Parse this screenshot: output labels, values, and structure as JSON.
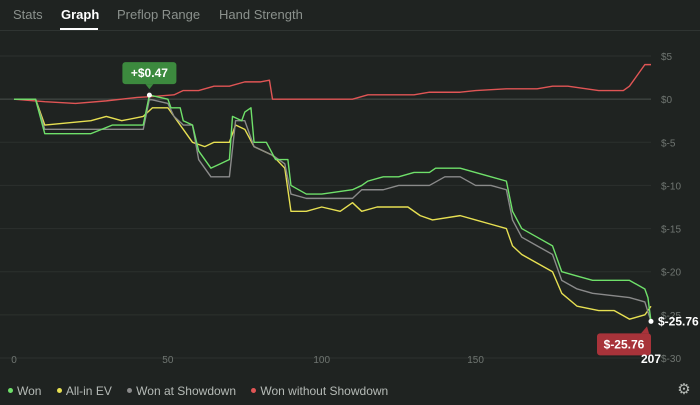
{
  "tabs": [
    {
      "label": "Stats"
    },
    {
      "label": "Graph"
    },
    {
      "label": "Preflop Range"
    },
    {
      "label": "Hand Strength"
    }
  ],
  "active_tab": "Graph",
  "colors": {
    "won": "#6fe06a",
    "allin_ev": "#e7e052",
    "showdown": "#8a8a8a",
    "no_showdown": "#e05555",
    "peak_badge": "#3c8a3e",
    "final_badge": "#a8333a"
  },
  "peak_badge": "+$0.47",
  "final_badge": "$-25.76",
  "final_value_label": "$-25.76",
  "x_end_label": "207",
  "legend": [
    {
      "label": "Won"
    },
    {
      "label": "All-in EV"
    },
    {
      "label": "Won at Showdown"
    },
    {
      "label": "Won without Showdown"
    }
  ],
  "settings_icon": "gear-icon",
  "chart_data": {
    "type": "line",
    "xlim": [
      0,
      207
    ],
    "ylim": [
      -30,
      5
    ],
    "x_ticks": [
      0,
      50,
      100,
      150
    ],
    "y_ticks": [
      5,
      0,
      -5,
      -10,
      -15,
      -20,
      -25,
      -30
    ],
    "y_tick_labels": [
      "$5",
      "$0",
      "$-5",
      "$-10",
      "$-15",
      "$-20",
      "$-25",
      "$-30"
    ],
    "x_tick_labels": [
      "0",
      "50",
      "100",
      "150"
    ],
    "series": [
      {
        "name": "Won",
        "color": "#6fe06a",
        "points": [
          [
            0,
            0
          ],
          [
            7,
            0
          ],
          [
            10,
            -4
          ],
          [
            25,
            -4
          ],
          [
            32,
            -3
          ],
          [
            42,
            -3
          ],
          [
            44,
            0.47
          ],
          [
            50,
            0
          ],
          [
            51,
            -1
          ],
          [
            54,
            -1
          ],
          [
            55,
            -2.5
          ],
          [
            58,
            -3
          ],
          [
            60,
            -6
          ],
          [
            64,
            -8
          ],
          [
            67,
            -7.5
          ],
          [
            70,
            -7
          ],
          [
            71,
            -2
          ],
          [
            74,
            -2.5
          ],
          [
            75,
            -1.5
          ],
          [
            77,
            -1
          ],
          [
            78,
            -5
          ],
          [
            82,
            -5
          ],
          [
            85,
            -7
          ],
          [
            89,
            -7
          ],
          [
            90,
            -10
          ],
          [
            95,
            -11
          ],
          [
            100,
            -11
          ],
          [
            110,
            -10.5
          ],
          [
            113,
            -10
          ],
          [
            115,
            -9.5
          ],
          [
            120,
            -9
          ],
          [
            125,
            -9
          ],
          [
            130,
            -8.5
          ],
          [
            135,
            -8.5
          ],
          [
            137,
            -8
          ],
          [
            145,
            -8
          ],
          [
            155,
            -9
          ],
          [
            160,
            -9.5
          ],
          [
            162,
            -13
          ],
          [
            165,
            -15
          ],
          [
            170,
            -16
          ],
          [
            175,
            -17
          ],
          [
            178,
            -20
          ],
          [
            183,
            -20.5
          ],
          [
            188,
            -21
          ],
          [
            200,
            -21
          ],
          [
            205,
            -22
          ],
          [
            206,
            -23
          ],
          [
            207,
            -25.76
          ]
        ]
      },
      {
        "name": "All-in EV",
        "color": "#e7e052",
        "points": [
          [
            0,
            0
          ],
          [
            7,
            0
          ],
          [
            10,
            -3
          ],
          [
            25,
            -2.5
          ],
          [
            30,
            -2
          ],
          [
            35,
            -2.5
          ],
          [
            42,
            -2
          ],
          [
            45,
            -1
          ],
          [
            50,
            -1
          ],
          [
            52,
            -2
          ],
          [
            55,
            -3.5
          ],
          [
            58,
            -5
          ],
          [
            62,
            -5.5
          ],
          [
            65,
            -5
          ],
          [
            70,
            -5
          ],
          [
            72,
            -3
          ],
          [
            75,
            -3.5
          ],
          [
            78,
            -5.5
          ],
          [
            84,
            -6.5
          ],
          [
            88,
            -8
          ],
          [
            90,
            -13
          ],
          [
            95,
            -13
          ],
          [
            100,
            -12.5
          ],
          [
            106,
            -13
          ],
          [
            110,
            -12
          ],
          [
            113,
            -13
          ],
          [
            118,
            -12.5
          ],
          [
            122,
            -12.5
          ],
          [
            128,
            -12.5
          ],
          [
            132,
            -13.5
          ],
          [
            136,
            -14
          ],
          [
            145,
            -13.5
          ],
          [
            150,
            -14
          ],
          [
            155,
            -14.5
          ],
          [
            160,
            -15
          ],
          [
            162,
            -17
          ],
          [
            165,
            -18
          ],
          [
            170,
            -19
          ],
          [
            175,
            -20
          ],
          [
            178,
            -22.5
          ],
          [
            183,
            -24
          ],
          [
            190,
            -24.5
          ],
          [
            195,
            -24.5
          ],
          [
            200,
            -25.5
          ],
          [
            205,
            -25
          ],
          [
            207,
            -24
          ]
        ]
      },
      {
        "name": "Won at Showdown",
        "color": "#8a8a8a",
        "points": [
          [
            0,
            0
          ],
          [
            7,
            0
          ],
          [
            10,
            -3.5
          ],
          [
            25,
            -3.5
          ],
          [
            35,
            -3.5
          ],
          [
            42,
            -3.5
          ],
          [
            44,
            0
          ],
          [
            50,
            -0.5
          ],
          [
            52,
            -2
          ],
          [
            55,
            -3
          ],
          [
            58,
            -3
          ],
          [
            60,
            -7
          ],
          [
            64,
            -9
          ],
          [
            68,
            -9
          ],
          [
            70,
            -9
          ],
          [
            72,
            -2.5
          ],
          [
            75,
            -2.5
          ],
          [
            78,
            -5.5
          ],
          [
            84,
            -6.5
          ],
          [
            88,
            -7.5
          ],
          [
            90,
            -11
          ],
          [
            95,
            -11.5
          ],
          [
            100,
            -11.5
          ],
          [
            110,
            -11.5
          ],
          [
            113,
            -10.5
          ],
          [
            120,
            -10.5
          ],
          [
            125,
            -10
          ],
          [
            130,
            -10
          ],
          [
            135,
            -10
          ],
          [
            140,
            -9
          ],
          [
            145,
            -9
          ],
          [
            150,
            -10
          ],
          [
            155,
            -10
          ],
          [
            160,
            -10.5
          ],
          [
            162,
            -14
          ],
          [
            165,
            -16
          ],
          [
            170,
            -17
          ],
          [
            175,
            -18
          ],
          [
            178,
            -21
          ],
          [
            183,
            -22
          ],
          [
            188,
            -22.5
          ],
          [
            200,
            -23
          ],
          [
            205,
            -23.5
          ],
          [
            207,
            -25.76
          ]
        ]
      },
      {
        "name": "Won without Showdown",
        "color": "#e05555",
        "points": [
          [
            0,
            0
          ],
          [
            10,
            -0.3
          ],
          [
            20,
            -0.5
          ],
          [
            30,
            -0.2
          ],
          [
            40,
            0.2
          ],
          [
            45,
            0.3
          ],
          [
            52,
            0.5
          ],
          [
            55,
            1
          ],
          [
            60,
            1
          ],
          [
            65,
            1.5
          ],
          [
            70,
            1.5
          ],
          [
            75,
            2
          ],
          [
            80,
            2
          ],
          [
            83,
            2.2
          ],
          [
            84,
            0
          ],
          [
            95,
            0
          ],
          [
            100,
            0
          ],
          [
            110,
            0
          ],
          [
            115,
            0.5
          ],
          [
            120,
            0.5
          ],
          [
            130,
            0.5
          ],
          [
            135,
            0.8
          ],
          [
            145,
            0.8
          ],
          [
            150,
            1
          ],
          [
            160,
            1.2
          ],
          [
            170,
            1.2
          ],
          [
            175,
            1.5
          ],
          [
            180,
            1.5
          ],
          [
            190,
            1
          ],
          [
            198,
            1
          ],
          [
            200,
            1.5
          ],
          [
            203,
            3
          ],
          [
            205,
            4
          ],
          [
            207,
            4
          ]
        ]
      }
    ]
  }
}
